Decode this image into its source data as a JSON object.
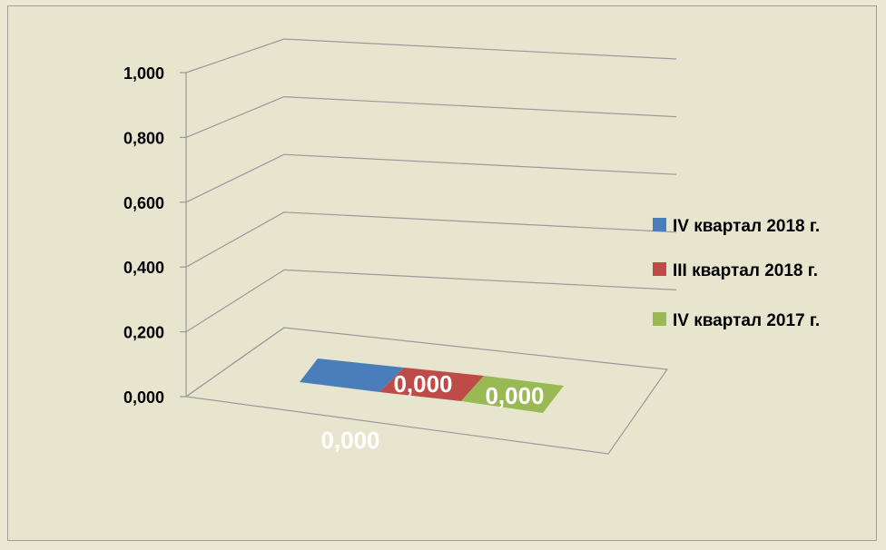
{
  "chart_data": {
    "type": "bar",
    "categories": [
      ""
    ],
    "series": [
      {
        "name": "IV квартал 2018 г.",
        "values": [
          0.0
        ],
        "color": "#4a7ebb"
      },
      {
        "name": "III квартал 2018 г.",
        "values": [
          0.0
        ],
        "color": "#be4b48"
      },
      {
        "name": "IV квартал 2017 г.",
        "values": [
          0.0
        ],
        "color": "#98b954"
      }
    ],
    "data_labels": [
      "0,000",
      "0,000",
      "0,000"
    ],
    "ylim": [
      0,
      1
    ],
    "yticks": [
      0.0,
      0.2,
      0.4,
      0.6,
      0.8,
      1.0
    ],
    "ytick_labels": [
      "0,000",
      "0,200",
      "0,400",
      "0,600",
      "0,800",
      "1,000"
    ],
    "grid": true,
    "legend_position": "right",
    "style": "3d"
  }
}
